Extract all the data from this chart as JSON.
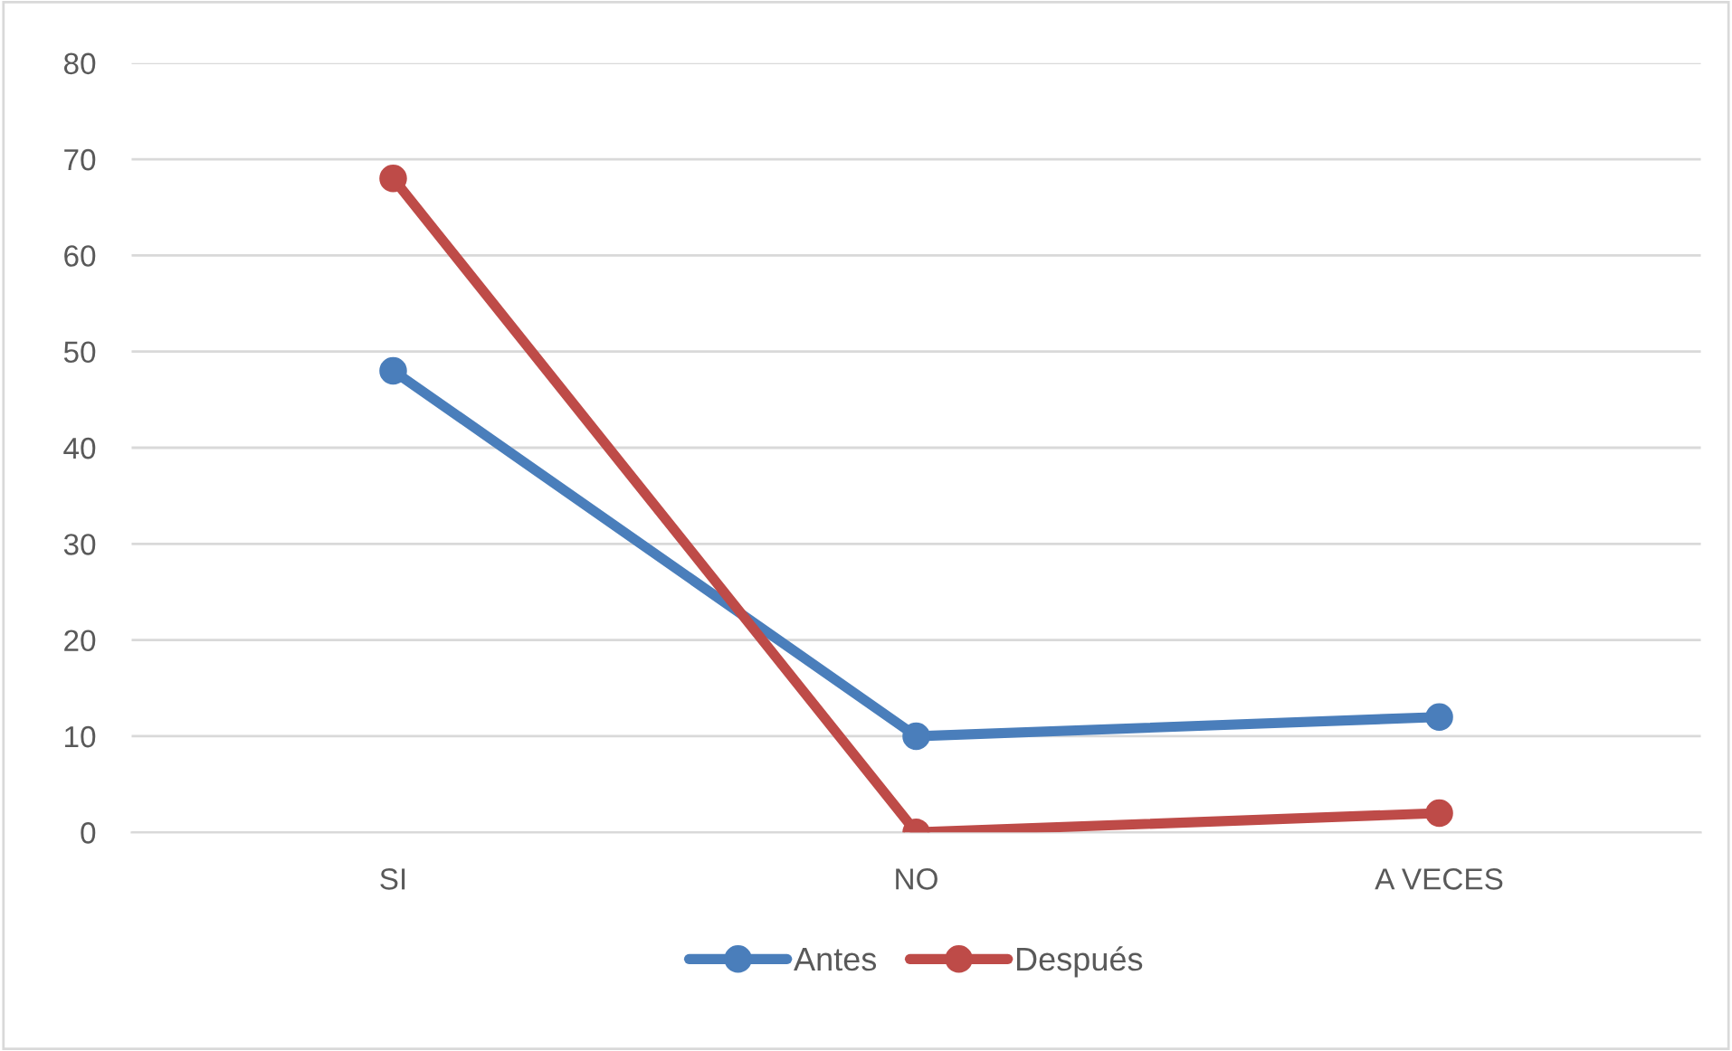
{
  "chart_data": {
    "type": "line",
    "categories": [
      "SI",
      "NO",
      "A VECES"
    ],
    "series": [
      {
        "name": "Antes",
        "color": "#4a7ebb",
        "values": [
          48,
          10,
          12
        ]
      },
      {
        "name": "Después",
        "color": "#be4b48",
        "values": [
          68,
          0,
          2
        ]
      }
    ],
    "ylim": [
      0,
      80
    ],
    "yticks": [
      0,
      10,
      20,
      30,
      40,
      50,
      60,
      70,
      80
    ],
    "grid": "y",
    "legend": "bottom",
    "marker": "circle",
    "line_style": "solid"
  }
}
